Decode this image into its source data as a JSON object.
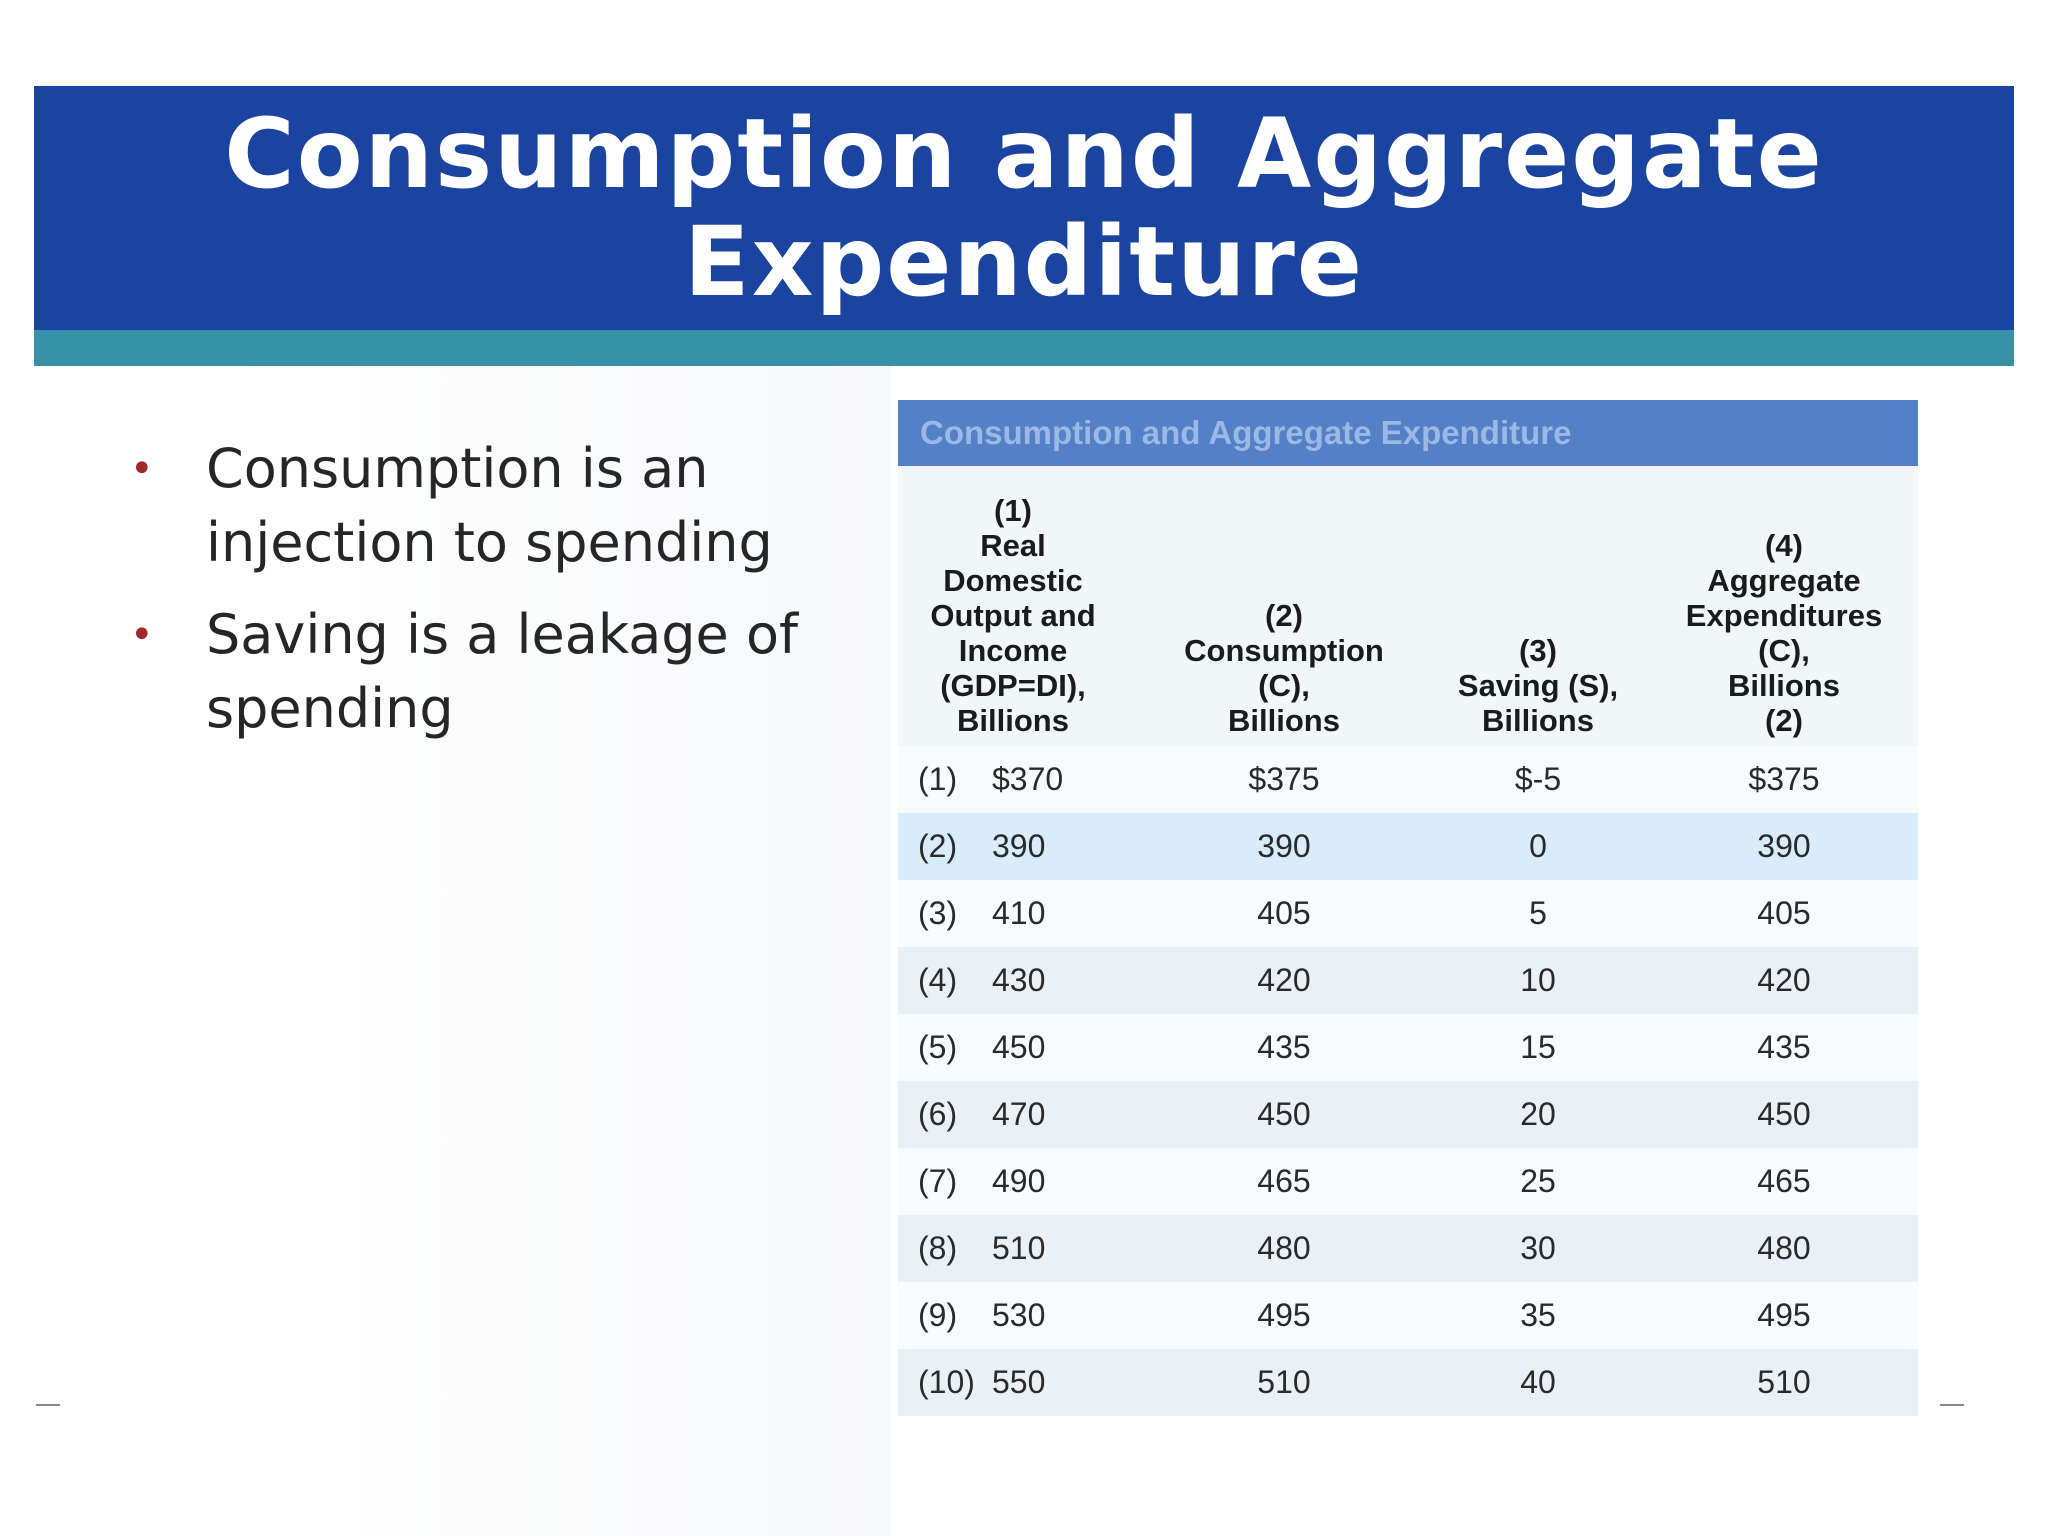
{
  "slide": {
    "title_line1": "Consumption and Aggregate",
    "title_line2": "Expenditure",
    "bullets": [
      "Consumption is an injection to spending",
      "Saving is a leakage of spending"
    ]
  },
  "table": {
    "title": "Consumption and Aggregate Expenditure",
    "columns": [
      [
        "(1)",
        "Real",
        "Domestic",
        "Output and",
        "Income",
        "(GDP=DI),",
        "Billions"
      ],
      [
        "(2)",
        "Consumption",
        "(C),",
        "Billions"
      ],
      [
        "(3)",
        "Saving (S),",
        "Billions"
      ],
      [
        "(4)",
        "Aggregate",
        "Expenditures",
        "(C),",
        "Billions",
        "(2)"
      ]
    ],
    "rows": [
      {
        "num": "(1)",
        "income": "$370",
        "consumption": "$375",
        "saving": "$-5",
        "aggregate": "$375"
      },
      {
        "num": "(2)",
        "income": "390",
        "consumption": "390",
        "saving": "0",
        "aggregate": "390"
      },
      {
        "num": "(3)",
        "income": "410",
        "consumption": "405",
        "saving": "5",
        "aggregate": "405"
      },
      {
        "num": "(4)",
        "income": "430",
        "consumption": "420",
        "saving": "10",
        "aggregate": "420"
      },
      {
        "num": "(5)",
        "income": "450",
        "consumption": "435",
        "saving": "15",
        "aggregate": "435"
      },
      {
        "num": "(6)",
        "income": "470",
        "consumption": "450",
        "saving": "20",
        "aggregate": "450"
      },
      {
        "num": "(7)",
        "income": "490",
        "consumption": "465",
        "saving": "25",
        "aggregate": "465"
      },
      {
        "num": "(8)",
        "income": "510",
        "consumption": "480",
        "saving": "30",
        "aggregate": "480"
      },
      {
        "num": "(9)",
        "income": "530",
        "consumption": "495",
        "saving": "35",
        "aggregate": "495"
      },
      {
        "num": "(10)",
        "income": "550",
        "consumption": "510",
        "saving": "40",
        "aggregate": "510"
      }
    ],
    "highlighted_row": 1
  },
  "colors": {
    "title_band": "#1a44a0",
    "teal_strip": "#3690a6",
    "bullet": "#a0292b",
    "table_title_bar": "#5480c8"
  }
}
